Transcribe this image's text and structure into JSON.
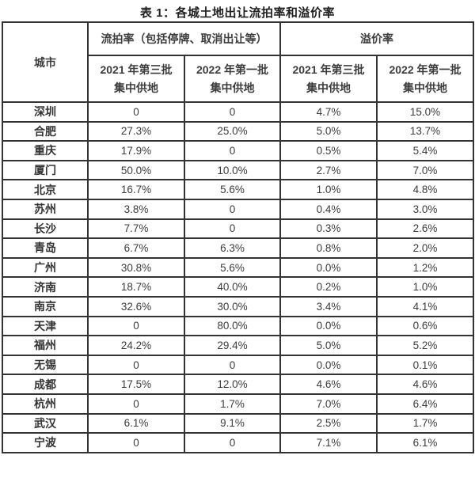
{
  "title": "表 1：各城土地出让流拍率和溢价率",
  "colors": {
    "background": "#ffffff",
    "border": "#333333",
    "text": "#3c3c3c",
    "title_text": "#1f1f1f"
  },
  "chart_data": {
    "type": "table",
    "title": "表 1：各城土地出让流拍率和溢价率",
    "corner_header": "城市",
    "group_headers": [
      "流拍率（包括停牌、取消出让等）",
      "溢价率"
    ],
    "sub_headers": [
      [
        "2021 年第三批",
        "集中供地"
      ],
      [
        "2022 年第一批",
        "集中供地"
      ],
      [
        "2021 年第三批",
        "集中供地"
      ],
      [
        "2022 年第一批",
        "集中供地"
      ]
    ],
    "rows": [
      {
        "city": "深圳",
        "values": [
          "0",
          "0",
          "4.7%",
          "15.0%"
        ]
      },
      {
        "city": "合肥",
        "values": [
          "27.3%",
          "25.0%",
          "5.0%",
          "13.7%"
        ]
      },
      {
        "city": "重庆",
        "values": [
          "17.9%",
          "0",
          "0.5%",
          "5.4%"
        ]
      },
      {
        "city": "厦门",
        "values": [
          "50.0%",
          "10.0%",
          "2.7%",
          "7.0%"
        ]
      },
      {
        "city": "北京",
        "values": [
          "16.7%",
          "5.6%",
          "1.0%",
          "4.8%"
        ]
      },
      {
        "city": "苏州",
        "values": [
          "3.8%",
          "0",
          "0.4%",
          "3.0%"
        ]
      },
      {
        "city": "长沙",
        "values": [
          "7.7%",
          "0",
          "0.3%",
          "2.6%"
        ]
      },
      {
        "city": "青岛",
        "values": [
          "6.7%",
          "6.3%",
          "0.8%",
          "2.0%"
        ]
      },
      {
        "city": "广州",
        "values": [
          "30.8%",
          "5.6%",
          "0.0%",
          "1.2%"
        ]
      },
      {
        "city": "济南",
        "values": [
          "18.7%",
          "40.0%",
          "0.2%",
          "1.0%"
        ]
      },
      {
        "city": "南京",
        "values": [
          "32.6%",
          "30.0%",
          "3.4%",
          "4.1%"
        ]
      },
      {
        "city": "天津",
        "values": [
          "0",
          "80.0%",
          "0.0%",
          "0.6%"
        ]
      },
      {
        "city": "福州",
        "values": [
          "24.2%",
          "29.4%",
          "5.0%",
          "5.2%"
        ]
      },
      {
        "city": "无锡",
        "values": [
          "0",
          "0",
          "0.0%",
          "0.1%"
        ]
      },
      {
        "city": "成都",
        "values": [
          "17.5%",
          "12.0%",
          "4.6%",
          "4.6%"
        ]
      },
      {
        "city": "杭州",
        "values": [
          "0",
          "1.7%",
          "7.0%",
          "6.4%"
        ]
      },
      {
        "city": "武汉",
        "values": [
          "6.1%",
          "9.1%",
          "2.5%",
          "1.7%"
        ]
      },
      {
        "city": "宁波",
        "values": [
          "0",
          "0",
          "7.1%",
          "6.1%"
        ]
      }
    ]
  }
}
